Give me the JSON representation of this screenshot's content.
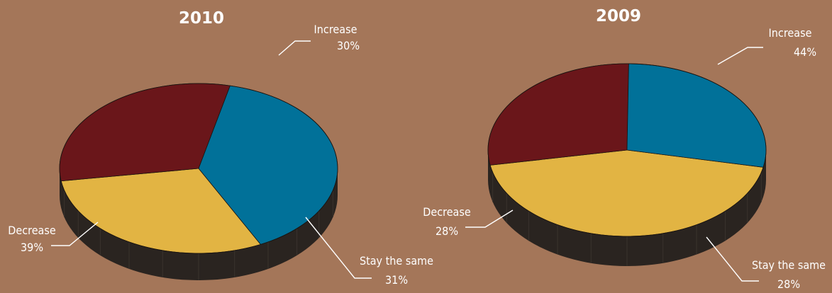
{
  "chart_data": [
    {
      "type": "pie",
      "title": "2010",
      "slices": [
        {
          "label": "Increase",
          "value": 30,
          "value_label": "30%",
          "color": "#E2B443"
        },
        {
          "label": "Stay the same",
          "value": 31,
          "value_label": "31%",
          "color": "#6A161A"
        },
        {
          "label": "Decrease",
          "value": 39,
          "value_label": "39%",
          "color": "#017199"
        }
      ]
    },
    {
      "type": "pie",
      "title": "2009",
      "slices": [
        {
          "label": "Increase",
          "value": 44,
          "value_label": "44%",
          "color": "#E2B443"
        },
        {
          "label": "Stay the same",
          "value": 28,
          "value_label": "28%",
          "color": "#6A161A"
        },
        {
          "label": "Decrease",
          "value": 28,
          "value_label": "28%",
          "color": "#017199"
        }
      ]
    }
  ],
  "colors": {
    "background": "#A47659",
    "side": "#2A2420",
    "side_edge": "#3A332D",
    "text": "#FFFFFF"
  }
}
